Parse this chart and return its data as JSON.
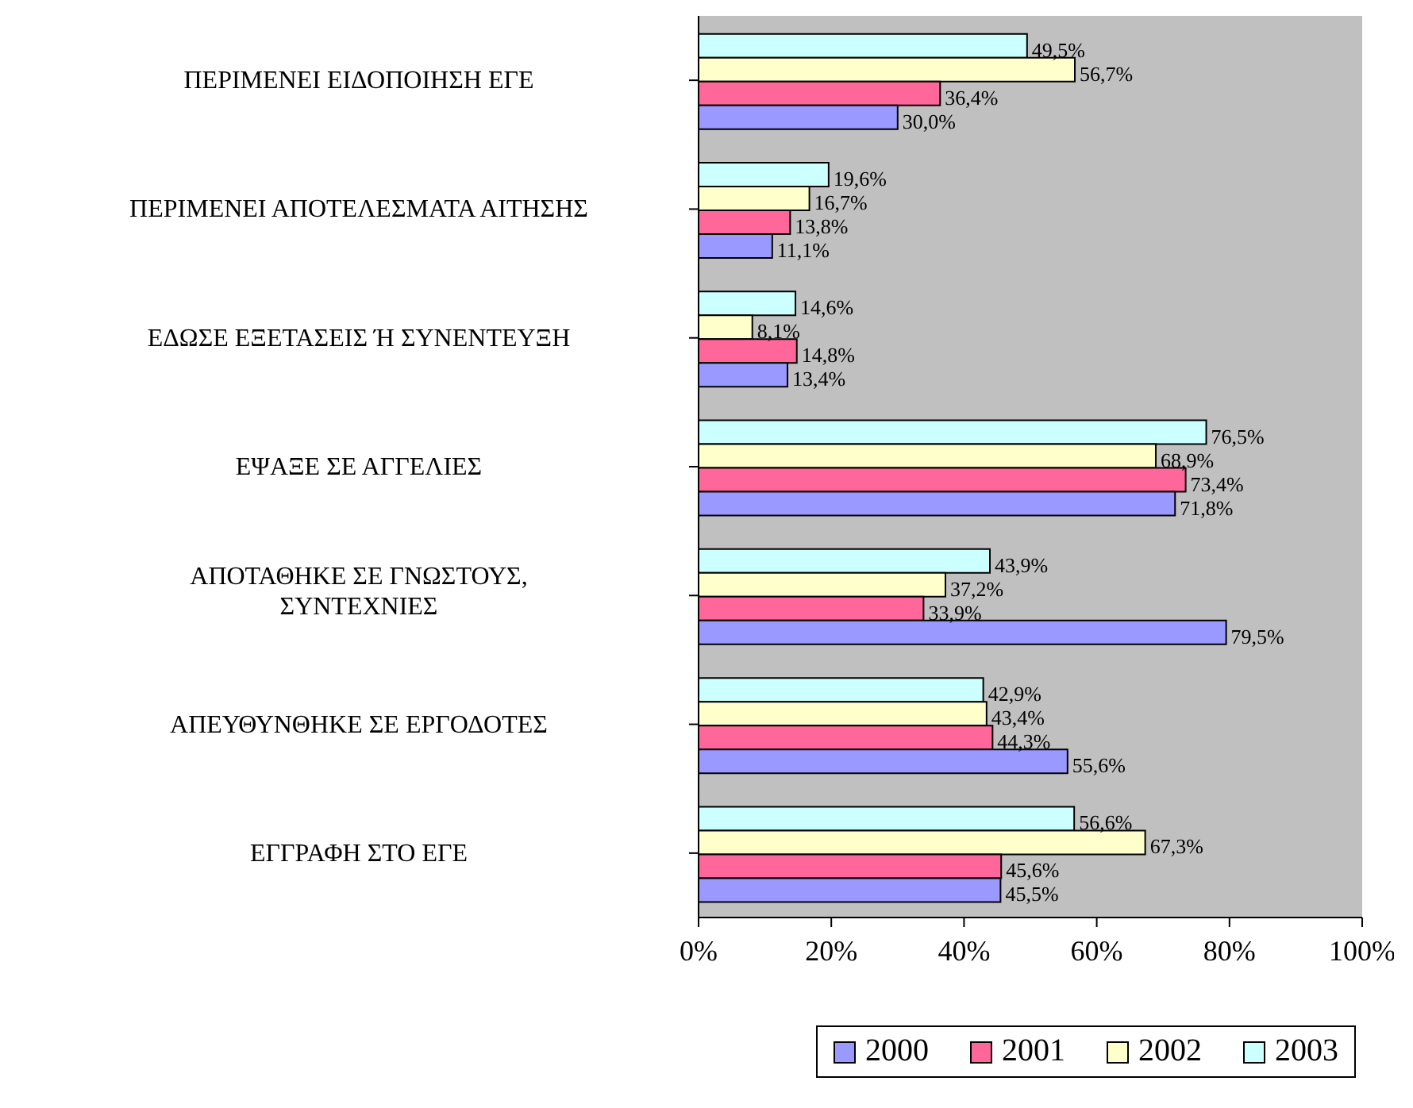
{
  "chart_data": {
    "type": "bar",
    "orientation": "horizontal",
    "categories": [
      "ΠΕΡΙΜΕΝΕΙ ΕΙΔΟΠΟΙΗΣΗ ΕΓΕ",
      "ΠΕΡΙΜΕΝΕΙ ΑΠΟΤΕΛΕΣΜΑΤΑ ΑΙΤΗΣΗΣ",
      "ΕΔΩΣΕ ΕΞΕΤΑΣΕΙΣ Ή ΣΥΝΕΝΤΕΥΞΗ",
      "ΕΨΑΞΕ ΣΕ ΑΓΓΕΛΙΕΣ",
      "ΑΠΟΤΑΘΗΚΕ ΣΕ ΓΝΩΣΤΟΥΣ, ΣΥΝΤΕΧΝΙΕΣ",
      "ΑΠΕΥΘΥΝΘΗΚΕ ΣΕ ΕΡΓΟΔΟΤΕΣ",
      "ΕΓΓΡΑΦΗ ΣΤΟ ΕΓΕ"
    ],
    "series": [
      {
        "name": "2000",
        "color": "#9999ff",
        "values": [
          30.0,
          11.1,
          13.4,
          71.8,
          79.5,
          55.6,
          45.5
        ],
        "value_labels": [
          "30,0%",
          "11,1%",
          "13,4%",
          "71,8%",
          "79,5%",
          "55,6%",
          "45,5%"
        ]
      },
      {
        "name": "2001",
        "color": "#ff6699",
        "values": [
          36.4,
          13.8,
          14.8,
          73.4,
          33.9,
          44.3,
          45.6
        ],
        "value_labels": [
          "36,4%",
          "13,8%",
          "14,8%",
          "73,4%",
          "33,9%",
          "44,3%",
          "45,6%"
        ]
      },
      {
        "name": "2002",
        "color": "#ffffcc",
        "values": [
          56.7,
          16.7,
          8.1,
          68.9,
          37.2,
          43.4,
          67.3
        ],
        "value_labels": [
          "56,7%",
          "16,7%",
          "8,1%",
          "68,9%",
          "37,2%",
          "43,4%",
          "67,3%"
        ]
      },
      {
        "name": "2003",
        "color": "#ccffff",
        "values": [
          49.5,
          19.6,
          14.6,
          76.5,
          43.9,
          42.9,
          56.6
        ],
        "value_labels": [
          "49,5%",
          "19,6%",
          "14,6%",
          "76,5%",
          "43,9%",
          "42,9%",
          "56,6%"
        ]
      }
    ],
    "xlim": [
      0,
      100
    ],
    "xticks": [
      {
        "value": 0,
        "label": "0%"
      },
      {
        "value": 20,
        "label": "20%"
      },
      {
        "value": 40,
        "label": "40%"
      },
      {
        "value": 60,
        "label": "60%"
      },
      {
        "value": 80,
        "label": "80%"
      },
      {
        "value": 100,
        "label": "100%"
      }
    ],
    "grid": false,
    "legend": "bottom"
  }
}
